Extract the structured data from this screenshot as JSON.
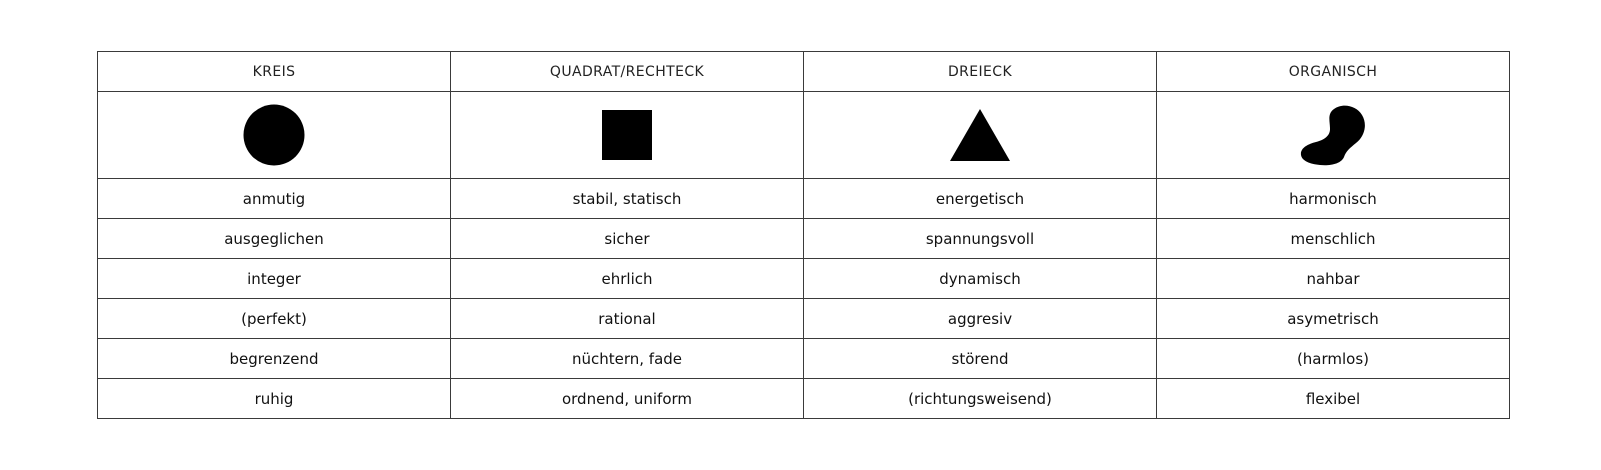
{
  "table": {
    "columns": [
      {
        "header": "KREIS",
        "shape": "circle-icon",
        "words": [
          "anmutig",
          "ausgeglichen",
          "integer",
          "(perfekt)",
          "begrenzend",
          "ruhig"
        ]
      },
      {
        "header": "QUADRAT/RECHTECK",
        "shape": "square-icon",
        "words": [
          "stabil, statisch",
          "sicher",
          "ehrlich",
          "rational",
          "nüchtern, fade",
          "ordnend, uniform"
        ]
      },
      {
        "header": "DREIECK",
        "shape": "triangle-icon",
        "words": [
          "energetisch",
          "spannungsvoll",
          "dynamisch",
          "aggresiv",
          "störend",
          "(richtungsweisend)"
        ]
      },
      {
        "header": "ORGANISCH",
        "shape": "organic-blob-icon",
        "words": [
          "harmonisch",
          "menschlich",
          "nahbar",
          "asymetrisch",
          "(harmlos)",
          "flexibel"
        ]
      }
    ],
    "shape_color": "#000000",
    "border_color": "#3a3a3a"
  }
}
